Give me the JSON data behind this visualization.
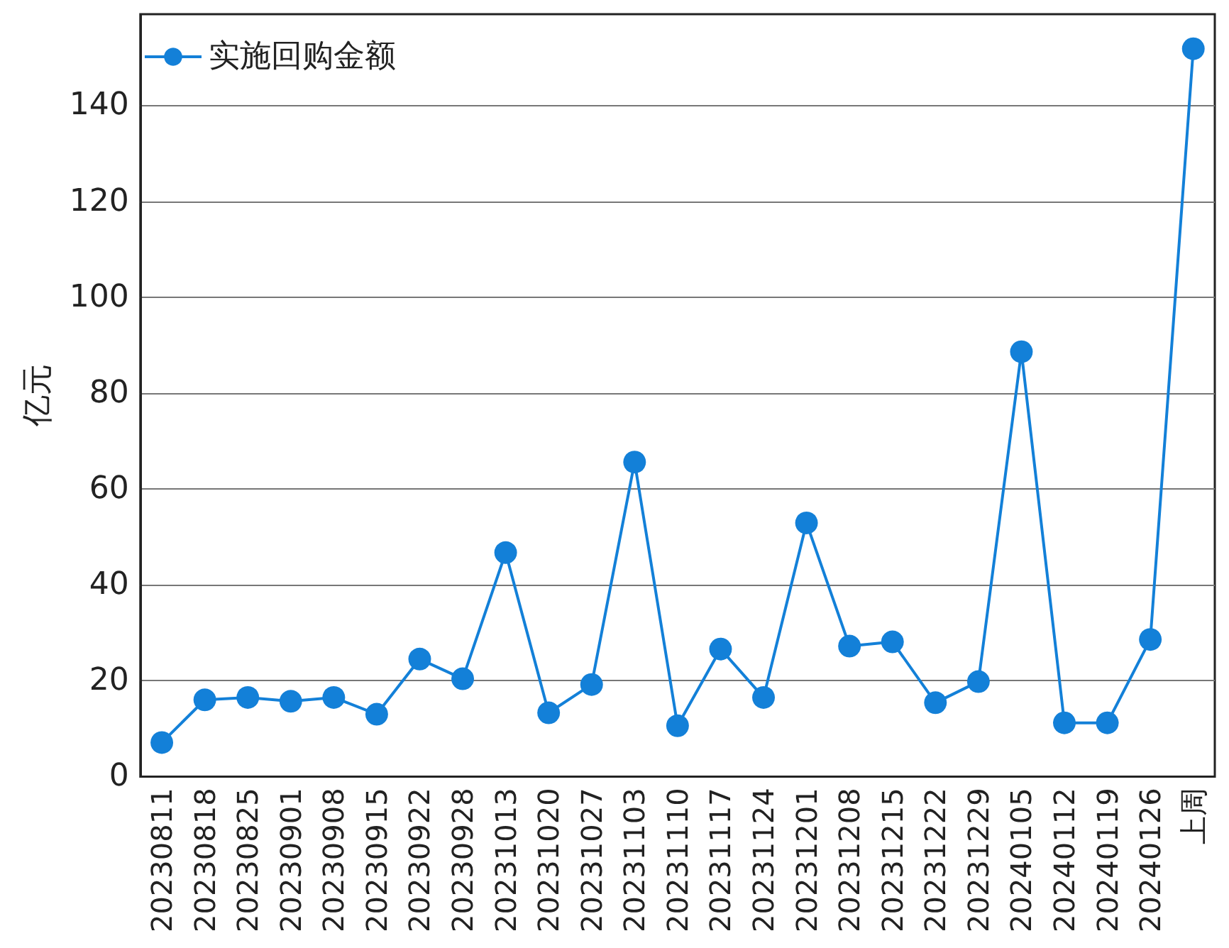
{
  "chart_data": {
    "type": "line",
    "ylabel": "亿元",
    "categories": [
      "20230811",
      "20230818",
      "20230825",
      "20230901",
      "20230908",
      "20230915",
      "20230922",
      "20230928",
      "20231013",
      "20231020",
      "20231027",
      "20231103",
      "20231110",
      "20231117",
      "20231124",
      "20231201",
      "20231208",
      "20231215",
      "20231222",
      "20231229",
      "20240105",
      "20240112",
      "20240119",
      "20240126",
      "上周"
    ],
    "series": [
      {
        "name": "实施回购金额",
        "color": "#1380d8",
        "values": [
          7.1,
          16,
          16.5,
          15.7,
          16.5,
          13,
          24.5,
          20.4,
          46.7,
          13.3,
          19.2,
          65.6,
          10.6,
          26.6,
          16.5,
          52.9,
          27.2,
          28.1,
          15.4,
          19.8,
          88.6,
          11.2,
          11.2,
          28.6,
          151.8
        ]
      }
    ],
    "ylim": [
      0,
      159
    ],
    "yticks": [
      0,
      20,
      40,
      60,
      80,
      100,
      120,
      140
    ],
    "grid": "y",
    "legend": "top left",
    "marker": "circle",
    "line_style": "solid"
  }
}
